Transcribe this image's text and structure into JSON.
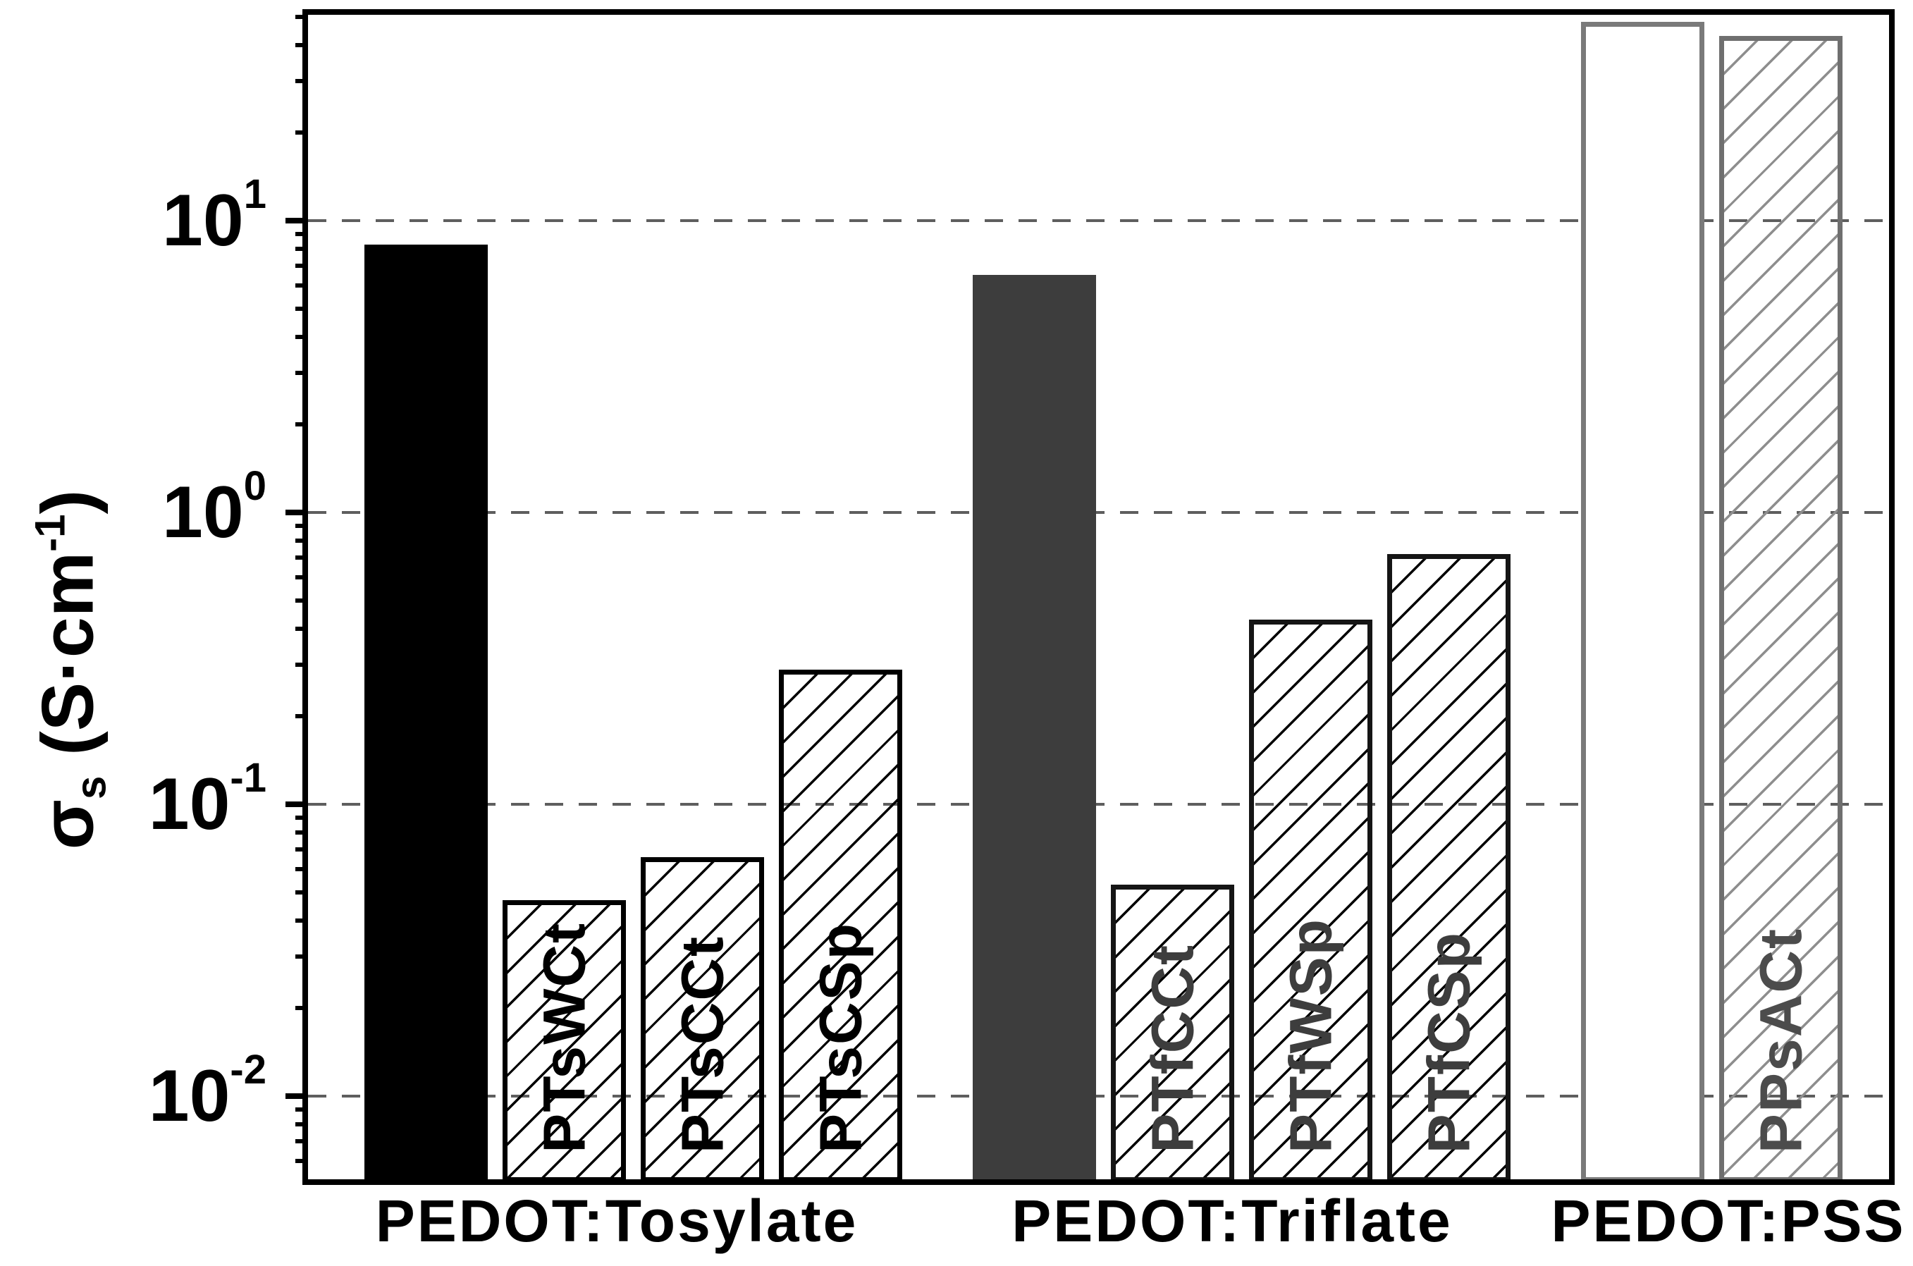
{
  "chart_data": {
    "type": "bar",
    "yscale": "log",
    "title": "",
    "ylabel": {
      "sigma": "σ",
      "sigma_sub": "s",
      "unit_open": " (S·cm",
      "unit_sup": "-1",
      "unit_close": ")"
    },
    "ylabel_plain": "σs (S·cm-1)",
    "ylim": [
      0.0052,
      50.8
    ],
    "grid_on": true,
    "legend": "none",
    "yticks": [
      {
        "base": "10",
        "exp": "1",
        "value": 10
      },
      {
        "base": "10",
        "exp": "0",
        "value": 1
      },
      {
        "base": "10",
        "exp": "-1",
        "value": 0.1
      },
      {
        "base": "10",
        "exp": "-2",
        "value": 0.01
      }
    ],
    "categories": [
      "PEDOT:Tosylate",
      "PEDOT:Triflate",
      "PEDOT:PSS"
    ],
    "groups": [
      {
        "label": "PEDOT:Tosylate",
        "bars": [
          {
            "label": "",
            "value": 8.3,
            "style": "solid",
            "fill": "#000000",
            "line": "#000000",
            "text": "#000000"
          },
          {
            "label": "PTsWCt",
            "value": 0.047,
            "style": "hatch",
            "fill": "none",
            "line": "#000000",
            "text": "#000000"
          },
          {
            "label": "PTsCCt",
            "value": 0.066,
            "style": "hatch",
            "fill": "none",
            "line": "#000000",
            "text": "#000000"
          },
          {
            "label": "PTsCSp",
            "value": 0.29,
            "style": "hatch",
            "fill": "none",
            "line": "#000000",
            "text": "#000000"
          }
        ]
      },
      {
        "label": "PEDOT:Triflate",
        "bars": [
          {
            "label": "",
            "value": 6.5,
            "style": "solid",
            "fill": "#3d3d3d",
            "line": "#3d3d3d",
            "text": "#3d3d3d"
          },
          {
            "label": "PTfCCt",
            "value": 0.053,
            "style": "hatch",
            "fill": "none",
            "line": "#151515",
            "text": "#3d3d3d"
          },
          {
            "label": "PTfWSp",
            "value": 0.43,
            "style": "hatch",
            "fill": "none",
            "line": "#151515",
            "text": "#3d3d3d"
          },
          {
            "label": "PTfCSp",
            "value": 0.72,
            "style": "hatch",
            "fill": "none",
            "line": "#151515",
            "text": "#3d3d3d"
          }
        ]
      },
      {
        "label": "PEDOT:PSS",
        "bars": [
          {
            "label": "",
            "value": 48,
            "style": "outline",
            "fill": "#ffffff",
            "line": "#7a7a7a",
            "text": "#4c4c4c"
          },
          {
            "label": "PPsACt",
            "value": 43,
            "style": "hatch",
            "fill": "none",
            "line": "#6f6f6f",
            "text": "#4c4c4c"
          }
        ]
      }
    ]
  },
  "colors": {
    "background": "#ffffff",
    "frame": "#000000",
    "grid": "#5e5e5e",
    "hatch_dark": "#000000",
    "hatch_gray": "#8e8e8e",
    "solid_black": "#000000",
    "solid_darkgray": "#3d3d3d",
    "outline_gray": "#7a7a7a"
  }
}
